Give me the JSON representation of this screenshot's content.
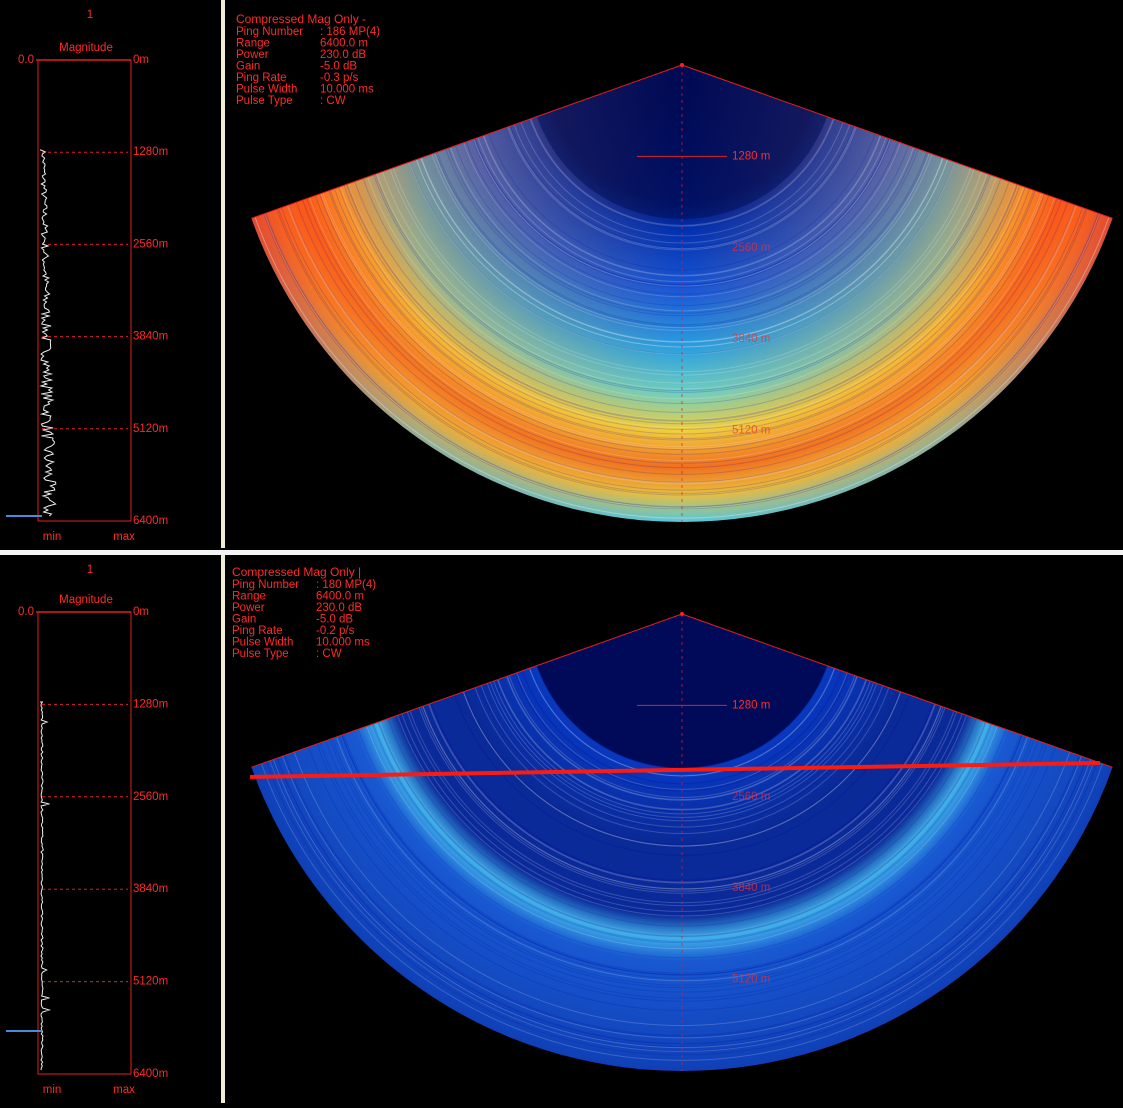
{
  "panels": [
    {
      "plot": {
        "index": "1",
        "title": "Magnitude",
        "zero": "0.0",
        "ranges": [
          "0m",
          "1280m",
          "2560m",
          "3840m",
          "5120m",
          "6400m"
        ],
        "min": "min",
        "max": "max"
      },
      "info": {
        "title": "Compressed Mag Only  -",
        "rows": [
          {
            "label": "Ping Number",
            "value": ":  186  MP(4)"
          },
          {
            "label": "Range",
            "value": "6400.0 m"
          },
          {
            "label": "Power",
            "value": "230.0 dB"
          },
          {
            "label": "Gain",
            "value": "-5.0 dB"
          },
          {
            "label": "Ping Rate",
            "value": "-0.3 p/s"
          },
          {
            "label": "Pulse Width",
            "value": "10.000 ms"
          },
          {
            "label": "Pulse Type",
            "value": ":  CW"
          }
        ]
      },
      "fan_labels": [
        "1280 m",
        "2560 m",
        "3840 m",
        "5120 m"
      ]
    },
    {
      "plot": {
        "index": "1",
        "title": "Magnitude",
        "zero": "0.0",
        "ranges": [
          "0m",
          "1280m",
          "2560m",
          "3840m",
          "5120m",
          "6400m"
        ],
        "min": "min",
        "max": "max"
      },
      "info": {
        "title": "Compressed Mag Only  |",
        "rows": [
          {
            "label": "Ping Number",
            "value": ":  180  MP(4)"
          },
          {
            "label": "Range",
            "value": "6400.0 m"
          },
          {
            "label": "Power",
            "value": "230.0 dB"
          },
          {
            "label": "Gain",
            "value": "-5.0 dB"
          },
          {
            "label": "Ping Rate",
            "value": "-0.2 p/s"
          },
          {
            "label": "Pulse Width",
            "value": "10.000 ms"
          },
          {
            "label": "Pulse Type",
            "value": ":  CW"
          }
        ]
      },
      "fan_labels": [
        "1280 m",
        "2560 m",
        "3840 m",
        "5120 m"
      ]
    }
  ]
}
